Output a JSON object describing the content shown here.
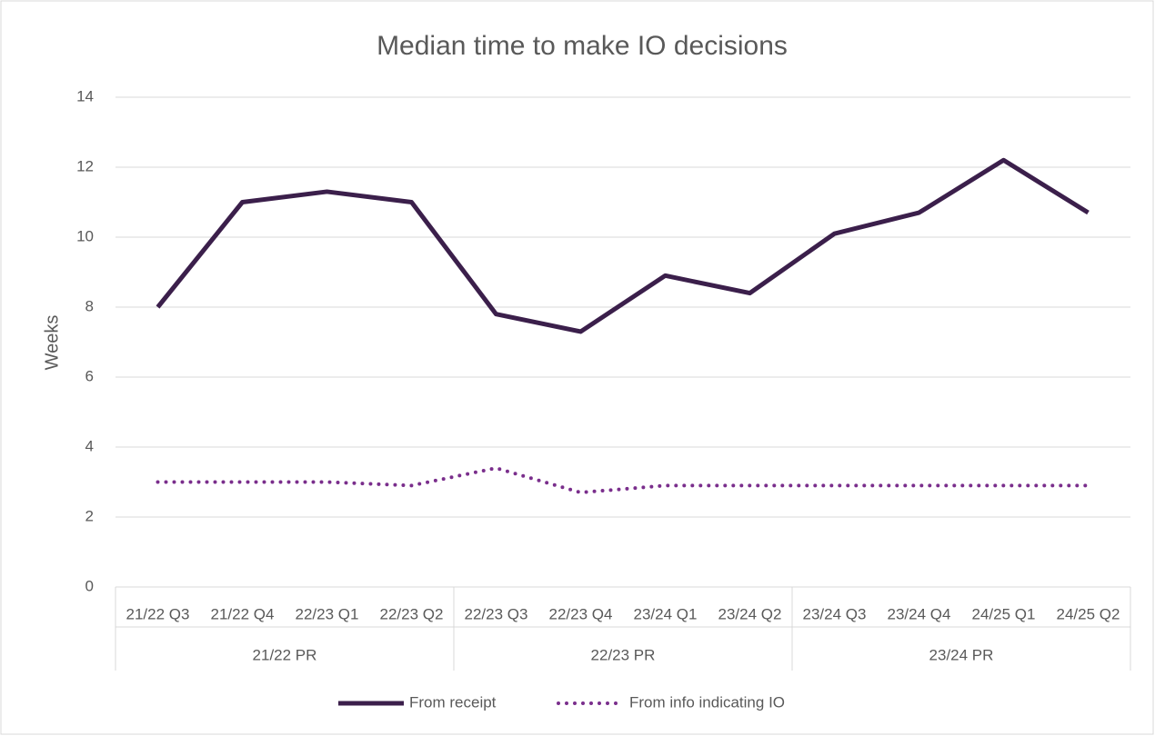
{
  "chart_data": {
    "type": "line",
    "title": "Median time to make IO decisions",
    "y_label": "Weeks",
    "categories": [
      "21/22 Q3",
      "21/22 Q4",
      "22/23 Q1",
      "22/23 Q2",
      "22/23 Q3",
      "22/23 Q4",
      "23/24 Q1",
      "23/24 Q2",
      "23/24 Q3",
      "23/24 Q4",
      "24/25 Q1",
      "24/25 Q2"
    ],
    "groups": [
      {
        "name": "21/22 PR",
        "size": 4
      },
      {
        "name": "22/23 PR",
        "size": 4
      },
      {
        "name": "23/24 PR",
        "size": 4
      }
    ],
    "series": [
      {
        "name": "From receipt",
        "color": "#3b1f4b",
        "style": "solid",
        "values": [
          8,
          11,
          11.3,
          11,
          7.8,
          7.3,
          8.9,
          8.4,
          10.1,
          10.7,
          12.2,
          10.7
        ]
      },
      {
        "name": "From info indicating IO",
        "color": "#7a2e8c",
        "style": "dotted",
        "values": [
          3,
          3,
          3,
          2.9,
          3.4,
          2.7,
          2.9,
          2.9,
          2.9,
          2.9,
          2.9,
          2.9
        ]
      }
    ],
    "ylim": [
      0,
      14
    ],
    "yticks": [
      0,
      2,
      4,
      6,
      8,
      10,
      12,
      14
    ],
    "grid": true,
    "legend": "bottom"
  }
}
